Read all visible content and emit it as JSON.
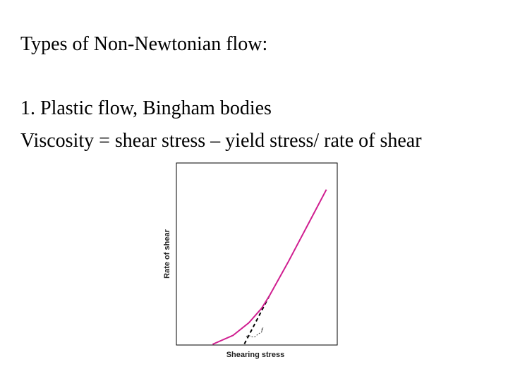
{
  "slide": {
    "title": "Types of Non-Newtonian flow:",
    "item": "1. Plastic flow, Bingham bodies",
    "formula": "Viscosity = shear stress – yield stress/ rate of shear"
  },
  "chart_data": {
    "type": "line",
    "xlabel": "Shearing stress",
    "ylabel": "Rate of shear",
    "grid": false,
    "annotations": [
      "f"
    ],
    "series": [
      {
        "values_x": [
          0.22,
          0.35,
          0.45,
          0.53,
          0.58,
          0.7,
          0.85,
          0.94
        ],
        "values_y": [
          0.0,
          0.05,
          0.12,
          0.2,
          0.27,
          0.46,
          0.71,
          0.86
        ],
        "color": "#d01e90"
      }
    ],
    "extrapolation": {
      "from": [
        0.58,
        0.27
      ],
      "to": [
        0.42,
        0.0
      ],
      "style": "dashed",
      "color": "#000000"
    },
    "xlim": [
      0,
      1
    ],
    "ylim": [
      0,
      1
    ]
  }
}
